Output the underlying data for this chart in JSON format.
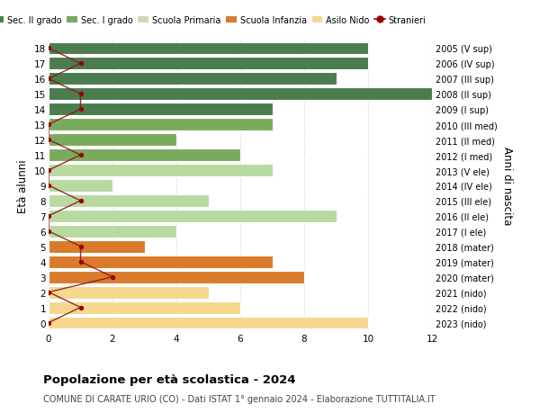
{
  "ages": [
    18,
    17,
    16,
    15,
    14,
    13,
    12,
    11,
    10,
    9,
    8,
    7,
    6,
    5,
    4,
    3,
    2,
    1,
    0
  ],
  "right_labels": [
    "2005 (V sup)",
    "2006 (IV sup)",
    "2007 (III sup)",
    "2008 (II sup)",
    "2009 (I sup)",
    "2010 (III med)",
    "2011 (II med)",
    "2012 (I med)",
    "2013 (V ele)",
    "2014 (IV ele)",
    "2015 (III ele)",
    "2016 (II ele)",
    "2017 (I ele)",
    "2018 (mater)",
    "2019 (mater)",
    "2020 (mater)",
    "2021 (nido)",
    "2022 (nido)",
    "2023 (nido)"
  ],
  "bar_values": [
    10,
    10,
    9,
    12,
    7,
    7,
    4,
    6,
    7,
    2,
    5,
    9,
    4,
    3,
    7,
    8,
    5,
    6,
    10
  ],
  "bar_colors": [
    "#4a7c4e",
    "#4a7c4e",
    "#4a7c4e",
    "#4a7c4e",
    "#4a7c4e",
    "#7aaa5e",
    "#7aaa5e",
    "#7aaa5e",
    "#b8d9a0",
    "#b8d9a0",
    "#b8d9a0",
    "#b8d9a0",
    "#b8d9a0",
    "#d97b2a",
    "#d97b2a",
    "#d97b2a",
    "#f5d88e",
    "#f5d88e",
    "#f5d88e"
  ],
  "stranieri_values": [
    0,
    1,
    0,
    1,
    1,
    0,
    0,
    1,
    0,
    0,
    1,
    0,
    0,
    1,
    1,
    2,
    0,
    1,
    0
  ],
  "title": "Popolazione per età scolastica - 2024",
  "subtitle": "COMUNE DI CARATE URIO (CO) - Dati ISTAT 1° gennaio 2024 - Elaborazione TUTTITALIA.IT",
  "ylabel": "Età alunni",
  "right_ylabel": "Anni di nascita",
  "xlim": [
    0,
    12
  ],
  "xticks": [
    0,
    2,
    4,
    6,
    8,
    10,
    12
  ],
  "legend_labels": [
    "Sec. II grado",
    "Sec. I grado",
    "Scuola Primaria",
    "Scuola Infanzia",
    "Asilo Nido",
    "Stranieri"
  ],
  "legend_colors": [
    "#4a7c4e",
    "#7aaa5e",
    "#c8ddb5",
    "#d97b2a",
    "#f5d88e",
    "#a00000"
  ],
  "bar_height": 0.82,
  "fig_width": 6.0,
  "fig_height": 4.6,
  "dpi": 100,
  "bg_color": "#ffffff",
  "grid_color": "#cccccc",
  "stranieri_line_color": "#8b1a1a",
  "stranieri_dot_color": "#990000"
}
